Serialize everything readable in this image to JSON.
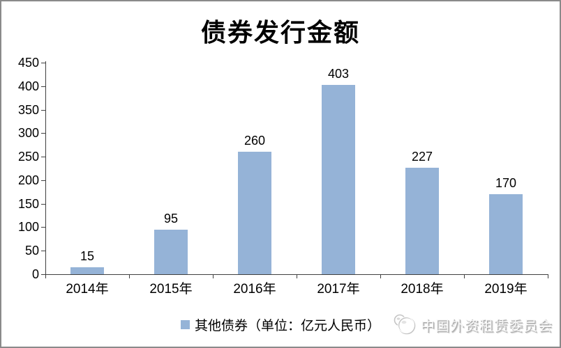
{
  "window": {
    "border_color": "#8a8a8a",
    "background": "#ffffff"
  },
  "chart_data": {
    "type": "bar",
    "title": "债券发行金额",
    "categories": [
      "2014年",
      "2015年",
      "2016年",
      "2017年",
      "2018年",
      "2019年"
    ],
    "values": [
      15,
      95,
      260,
      403,
      227,
      170
    ],
    "series_name": "其他债券（单位：亿元人民币）",
    "xlabel": "",
    "ylabel": "",
    "ylim": [
      0,
      450
    ],
    "yticks": [
      0,
      50,
      100,
      150,
      200,
      250,
      300,
      350,
      400,
      450
    ],
    "grid": false,
    "data_labels": true,
    "legend_position": "bottom",
    "bar_color": "#95b3d7",
    "axis_color": "#3f3f3f",
    "text_color": "#000000"
  },
  "legend": {
    "label": "其他债券（单位：亿元人民币）",
    "marker": "square-marker",
    "marker_color": "#95b3d7"
  },
  "watermark": {
    "icon": "globe-icon",
    "text": "中国外资租赁委员会"
  }
}
